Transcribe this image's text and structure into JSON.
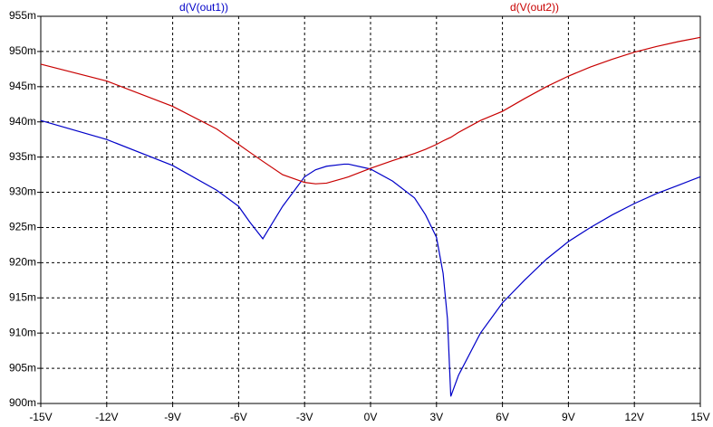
{
  "chart_data": {
    "type": "line",
    "x": [
      -15,
      -12,
      -9,
      -7,
      -6,
      -5.5,
      -4.9,
      -4,
      -3,
      -2.5,
      -2,
      -1.2,
      -1,
      0,
      1,
      2,
      2.5,
      3,
      3.3,
      3.5,
      3.65,
      4,
      5,
      6,
      7,
      8,
      9,
      10,
      11,
      12,
      13,
      14,
      15
    ],
    "series": [
      {
        "name": "d(V(out1))",
        "color": "#0000c8",
        "values": [
          940.2,
          937.5,
          933.8,
          930.3,
          928,
          925.8,
          923.4,
          928,
          932.2,
          933.2,
          933.7,
          934,
          934,
          933.3,
          931.6,
          929.2,
          926.8,
          923.6,
          918.5,
          912,
          901,
          904,
          910,
          914.3,
          917.5,
          920.5,
          923,
          925,
          926.8,
          928.4,
          929.8,
          931,
          932.2
        ]
      },
      {
        "name": "d(V(out2))",
        "color": "#c80000",
        "values": [
          948.2,
          945.8,
          942.2,
          939,
          936.8,
          935.7,
          934.4,
          932.5,
          931.4,
          931.2,
          931.3,
          932,
          932.2,
          933.4,
          934.5,
          935.5,
          936.1,
          936.8,
          937.3,
          937.6,
          937.8,
          938.5,
          940.2,
          941.5,
          943.3,
          945,
          946.5,
          947.8,
          948.9,
          949.9,
          950.7,
          951.4,
          952
        ]
      }
    ],
    "xlim": [
      -15,
      15
    ],
    "xticks": [
      {
        "value": -15,
        "label": "-15V"
      },
      {
        "value": -12,
        "label": "-12V"
      },
      {
        "value": -9,
        "label": "-9V"
      },
      {
        "value": -6,
        "label": "-6V"
      },
      {
        "value": -3,
        "label": "-3V"
      },
      {
        "value": 0,
        "label": "0V"
      },
      {
        "value": 3,
        "label": "3V"
      },
      {
        "value": 6,
        "label": "6V"
      },
      {
        "value": 9,
        "label": "9V"
      },
      {
        "value": 12,
        "label": "12V"
      },
      {
        "value": 15,
        "label": "15V"
      }
    ],
    "ylim": [
      900,
      955
    ],
    "yticks": [
      {
        "value": 900,
        "label": "900m"
      },
      {
        "value": 905,
        "label": "905m"
      },
      {
        "value": 910,
        "label": "910m"
      },
      {
        "value": 915,
        "label": "915m"
      },
      {
        "value": 920,
        "label": "920m"
      },
      {
        "value": 925,
        "label": "925m"
      },
      {
        "value": 930,
        "label": "930m"
      },
      {
        "value": 935,
        "label": "935m"
      },
      {
        "value": 940,
        "label": "940m"
      },
      {
        "value": 945,
        "label": "945m"
      },
      {
        "value": 950,
        "label": "950m"
      },
      {
        "value": 955,
        "label": "955m"
      }
    ],
    "grid": true
  }
}
